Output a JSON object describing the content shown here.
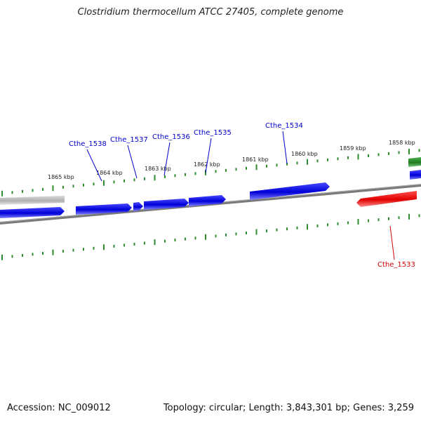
{
  "title": "Clostridium thermocellum ATCC 27405, complete genome",
  "footer": {
    "accession": "Accession: NC_009012",
    "stats": "Topology: circular; Length: 3,843,301 bp; Genes: 3,259"
  },
  "colors": {
    "forward_gene": "#0000dd",
    "reverse_gene": "#e00000",
    "other_gene": "#2a8a2a",
    "grey_gene": "#b8b8b8",
    "backbone": "#808080",
    "tick": "#2e8b2e",
    "label_blue": "#0000cc",
    "label_red": "#cc0000"
  },
  "scale_labels": [
    "1865 kbp",
    "1864 kbp",
    "1863 kbp",
    "1862 kbp",
    "1861 kbp",
    "1860 kbp",
    "1859 kbp",
    "1858 kbp"
  ],
  "genes": [
    {
      "label": "Cthe_1538",
      "strand": "forward"
    },
    {
      "label": "Cthe_1537",
      "strand": "forward"
    },
    {
      "label": "Cthe_1536",
      "strand": "forward"
    },
    {
      "label": "Cthe_1535",
      "strand": "forward"
    },
    {
      "label": "Cthe_1534",
      "strand": "forward"
    },
    {
      "label": "Cthe_1533",
      "strand": "reverse"
    }
  ]
}
